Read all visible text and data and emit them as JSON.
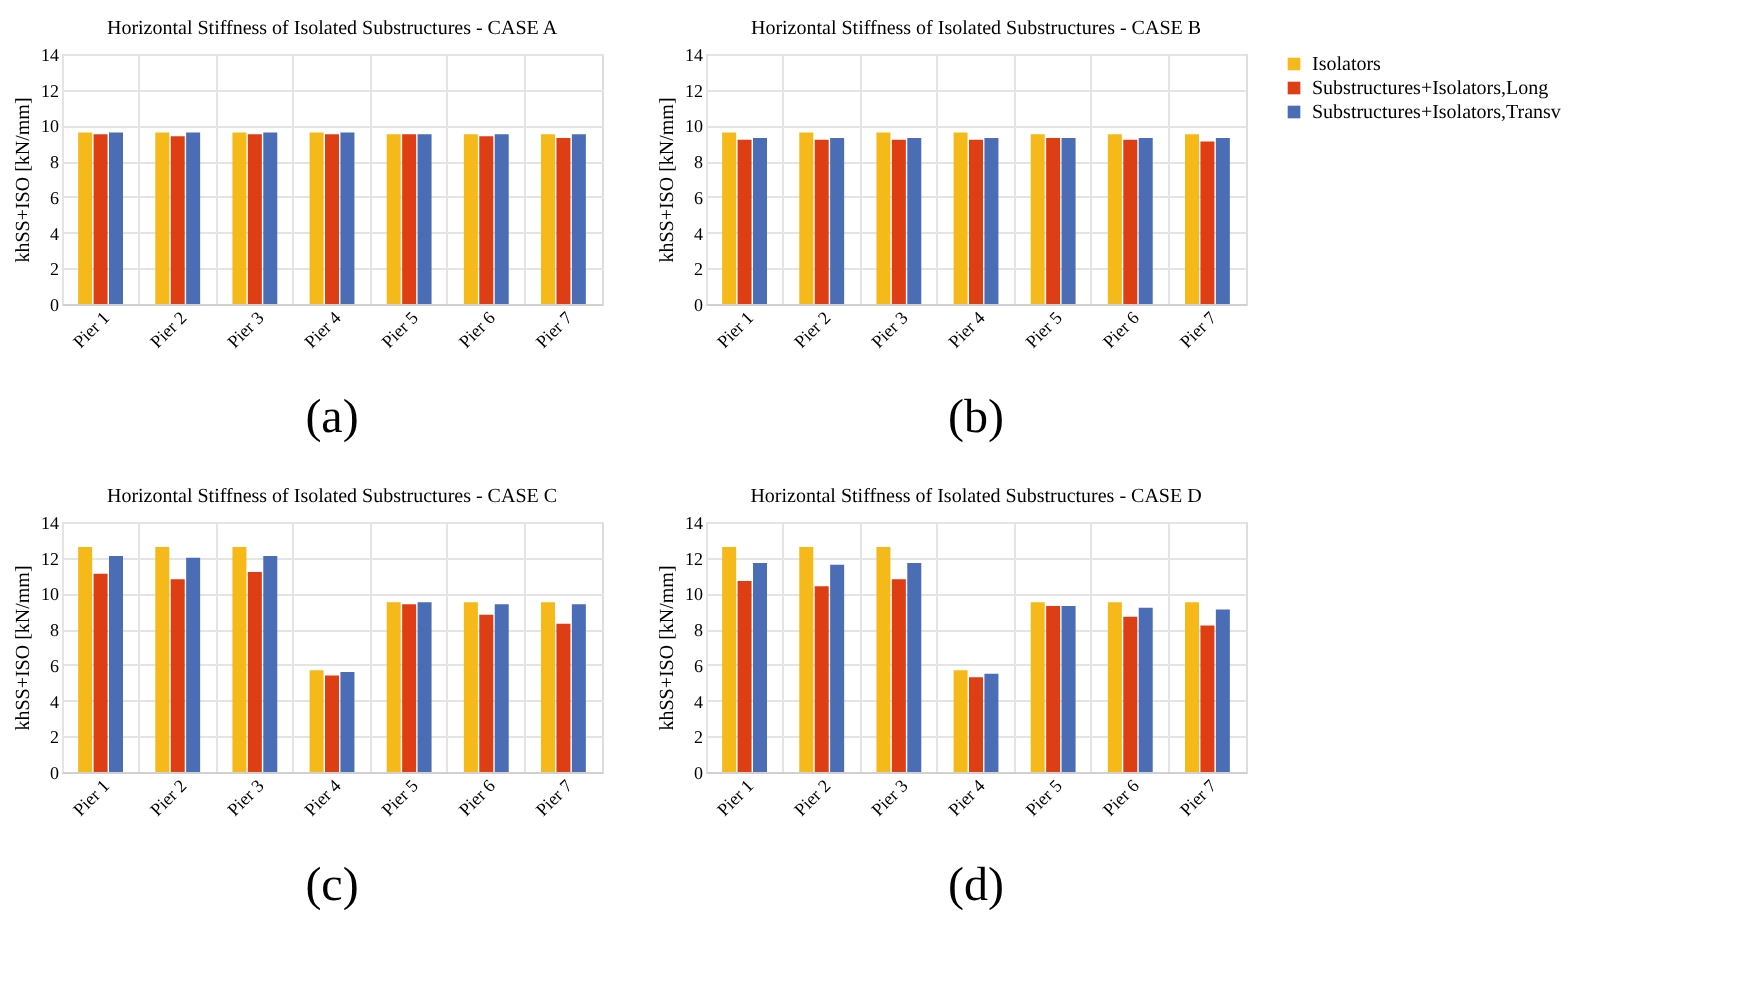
{
  "chart_data": [
    {
      "type": "bar",
      "title": "Horizontal Stiffness of Isolated Substructures - CASE A",
      "ylabel": "khSS+ISO [kN/mm]",
      "annotations": [
        "(a)"
      ],
      "categories": [
        "Pier 1",
        "Pier 2",
        "Pier 3",
        "Pier 4",
        "Pier 5",
        "Pier 6",
        "Pier 7"
      ],
      "series": [
        {
          "name": "Isolators",
          "color": "#f5b919",
          "values": [
            9.6,
            9.6,
            9.6,
            9.6,
            9.5,
            9.5,
            9.5
          ]
        },
        {
          "name": "Substructures+Isolators,Long",
          "color": "#dd3e14",
          "values": [
            9.5,
            9.4,
            9.5,
            9.5,
            9.5,
            9.4,
            9.3
          ]
        },
        {
          "name": "Substructures+Isolators,Transv",
          "color": "#4a6db5",
          "values": [
            9.6,
            9.6,
            9.6,
            9.6,
            9.5,
            9.5,
            9.5
          ]
        }
      ],
      "ylim": [
        0,
        14
      ],
      "yticks": [
        0,
        2,
        4,
        6,
        8,
        10,
        12,
        14
      ],
      "grid": true,
      "legend": "right"
    },
    {
      "type": "bar",
      "title": "Horizontal Stiffness of Isolated Substructures - CASE B",
      "ylabel": "khSS+ISO [kN/mm]",
      "annotations": [
        "(b)"
      ],
      "categories": [
        "Pier 1",
        "Pier 2",
        "Pier 3",
        "Pier 4",
        "Pier 5",
        "Pier 6",
        "Pier 7"
      ],
      "series": [
        {
          "name": "Isolators",
          "color": "#f5b919",
          "values": [
            9.6,
            9.6,
            9.6,
            9.6,
            9.5,
            9.5,
            9.5
          ]
        },
        {
          "name": "Substructures+Isolators,Long",
          "color": "#dd3e14",
          "values": [
            9.2,
            9.2,
            9.2,
            9.2,
            9.3,
            9.2,
            9.1
          ]
        },
        {
          "name": "Substructures+Isolators,Transv",
          "color": "#4a6db5",
          "values": [
            9.3,
            9.3,
            9.3,
            9.3,
            9.3,
            9.3,
            9.3
          ]
        }
      ],
      "ylim": [
        0,
        14
      ],
      "yticks": [
        0,
        2,
        4,
        6,
        8,
        10,
        12,
        14
      ],
      "grid": true,
      "legend": "right"
    },
    {
      "type": "bar",
      "title": "Horizontal Stiffness of Isolated Substructures - CASE C",
      "ylabel": "khSS+ISO [kN/mm]",
      "annotations": [
        "(c)"
      ],
      "categories": [
        "Pier 1",
        "Pier 2",
        "Pier 3",
        "Pier 4",
        "Pier 5",
        "Pier 6",
        "Pier 7"
      ],
      "series": [
        {
          "name": "Isolators",
          "color": "#f5b919",
          "values": [
            12.6,
            12.6,
            12.6,
            5.7,
            9.5,
            9.5,
            9.5
          ]
        },
        {
          "name": "Substructures+Isolators,Long",
          "color": "#dd3e14",
          "values": [
            11.1,
            10.8,
            11.2,
            5.4,
            9.4,
            8.8,
            8.3
          ]
        },
        {
          "name": "Substructures+Isolators,Transv",
          "color": "#4a6db5",
          "values": [
            12.1,
            12.0,
            12.1,
            5.6,
            9.5,
            9.4,
            9.4
          ]
        }
      ],
      "ylim": [
        0,
        14
      ],
      "yticks": [
        0,
        2,
        4,
        6,
        8,
        10,
        12,
        14
      ],
      "grid": true,
      "legend": "right"
    },
    {
      "type": "bar",
      "title": "Horizontal Stiffness of Isolated Substructures - CASE D",
      "ylabel": "khSS+ISO [kN/mm]",
      "annotations": [
        "(d)"
      ],
      "categories": [
        "Pier 1",
        "Pier 2",
        "Pier 3",
        "Pier 4",
        "Pier 5",
        "Pier 6",
        "Pier 7"
      ],
      "series": [
        {
          "name": "Isolators",
          "color": "#f5b919",
          "values": [
            12.6,
            12.6,
            12.6,
            5.7,
            9.5,
            9.5,
            9.5
          ]
        },
        {
          "name": "Substructures+Isolators,Long",
          "color": "#dd3e14",
          "values": [
            10.7,
            10.4,
            10.8,
            5.3,
            9.3,
            8.7,
            8.2
          ]
        },
        {
          "name": "Substructures+Isolators,Transv",
          "color": "#4a6db5",
          "values": [
            11.7,
            11.6,
            11.7,
            5.5,
            9.3,
            9.2,
            9.1
          ]
        }
      ],
      "ylim": [
        0,
        14
      ],
      "yticks": [
        0,
        2,
        4,
        6,
        8,
        10,
        12,
        14
      ],
      "grid": true,
      "legend": "right"
    }
  ]
}
